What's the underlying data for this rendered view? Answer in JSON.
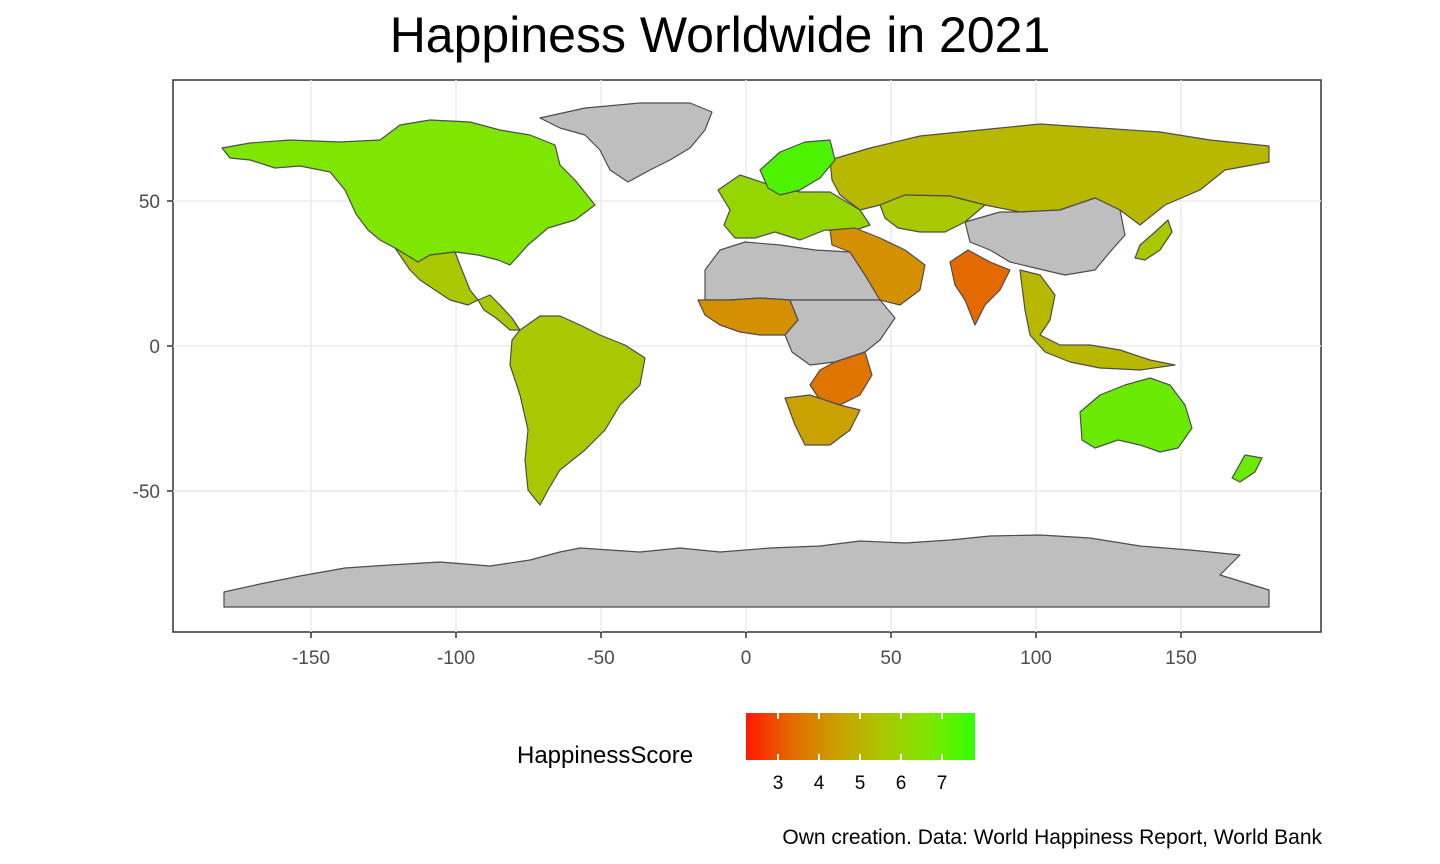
{
  "title": "Happiness Worldwide in 2021",
  "caption": "Own creation. Data: World Happiness Report, World Bank",
  "x_axis": {
    "ticks": [
      "-150",
      "-100",
      "-50",
      "0",
      "50",
      "100",
      "150"
    ]
  },
  "y_axis": {
    "ticks": [
      "50",
      "0",
      "-50"
    ]
  },
  "legend": {
    "title": "HappinessScore",
    "ticks": [
      "3",
      "4",
      "5",
      "6",
      "7"
    ],
    "range": [
      2.5,
      7.9
    ],
    "colors": [
      "#ff1a00",
      "#e46a00",
      "#c9a100",
      "#a9c800",
      "#7ee600",
      "#33ff00"
    ]
  },
  "colors": {
    "panel_border": "#333333",
    "grid": "#ebebeb",
    "no_data": "#bebebe",
    "country_outline": "#4d4d4d"
  },
  "regions": [
    {
      "name": "Antarctica",
      "fill": "#bebebe"
    },
    {
      "name": "Greenland",
      "fill": "#bebebe"
    },
    {
      "name": "North America",
      "fill": "#7ee600"
    },
    {
      "name": "Mexico",
      "fill": "#a9c800"
    },
    {
      "name": "Central America",
      "fill": "#a9c800"
    },
    {
      "name": "South America",
      "fill": "#a9c800"
    },
    {
      "name": "Russia",
      "fill": "#b8b800"
    },
    {
      "name": "Europe",
      "fill": "#95d600"
    },
    {
      "name": "Scandinavia",
      "fill": "#4cf200"
    },
    {
      "name": "North Africa",
      "fill": "#bebebe"
    },
    {
      "name": "West Africa",
      "fill": "#d49000"
    },
    {
      "name": "Central Africa",
      "fill": "#bebebe"
    },
    {
      "name": "East Africa",
      "fill": "#e07400"
    },
    {
      "name": "Southern Africa",
      "fill": "#c9a100"
    },
    {
      "name": "Middle East",
      "fill": "#d49000"
    },
    {
      "name": "India",
      "fill": "#e46a00"
    },
    {
      "name": "China",
      "fill": "#bebebe"
    },
    {
      "name": "Central Asia",
      "fill": "#a9c800"
    },
    {
      "name": "Southeast Asia",
      "fill": "#b8b800"
    },
    {
      "name": "Japan",
      "fill": "#a9c800"
    },
    {
      "name": "Australia",
      "fill": "#6aea00"
    },
    {
      "name": "New Zealand",
      "fill": "#6aea00"
    }
  ]
}
